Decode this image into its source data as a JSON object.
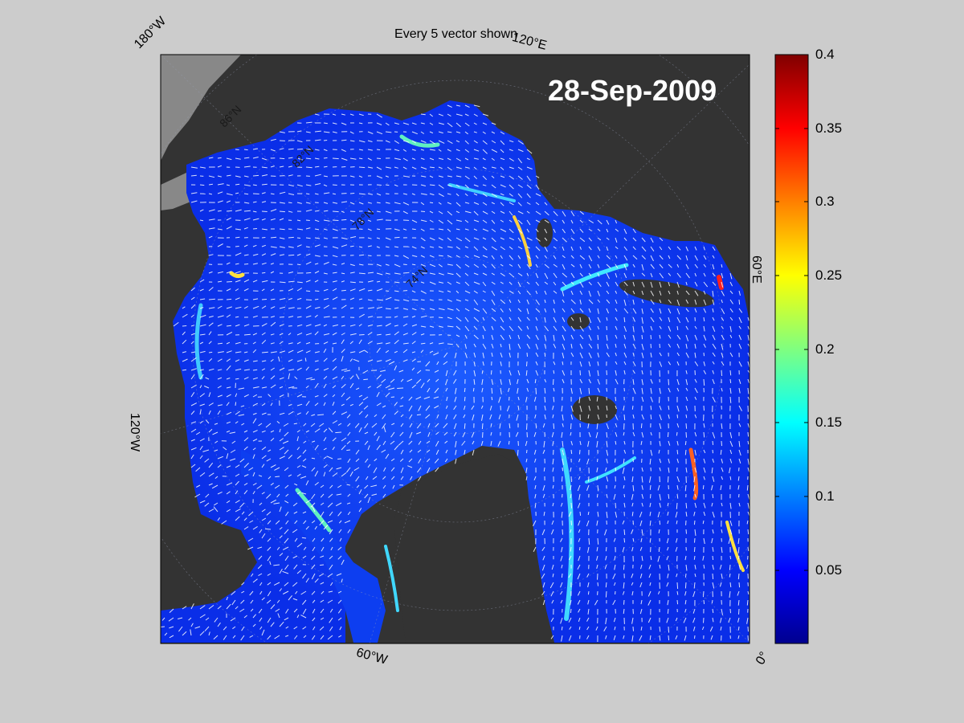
{
  "title": "Every 5 vector shown",
  "date": "28-Sep-2009",
  "lon_labels": {
    "top_left": "180°W",
    "top_right": "120°E",
    "right": "60°E",
    "left": "120°W",
    "bottom": "60°W",
    "bottom_right": "0°"
  },
  "lat_labels": [
    "86°N",
    "82°N",
    "78°N",
    "74°N"
  ],
  "colorbar": {
    "colormap": "jet",
    "min": 0,
    "max": 0.4,
    "ticks": [
      "0.4",
      "0.35",
      "0.3",
      "0.25",
      "0.2",
      "0.15",
      "0.1",
      "0.05"
    ]
  },
  "colors": {
    "figure_background": "#cccccc",
    "land": "#333333",
    "unmapped_land": "#888888",
    "ice_drift_low": "#1040ff",
    "vector_color": "#ffffff"
  }
}
